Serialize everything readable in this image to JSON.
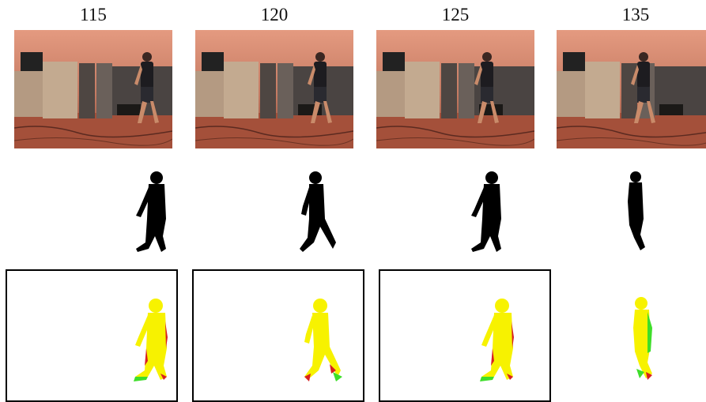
{
  "figure": {
    "frames": [
      {
        "label": "115",
        "overlay_bordered": true
      },
      {
        "label": "120",
        "overlay_bordered": true
      },
      {
        "label": "125",
        "overlay_bordered": true
      },
      {
        "label": "135",
        "overlay_bordered": false
      }
    ]
  },
  "colors": {
    "scene_warm": "#d9896a",
    "scene_floor": "#a8523c",
    "cabinet": "#b9a086",
    "silhouette": "#000000",
    "overlay_fill": "#f7f200",
    "overlay_false_negative": "#d82020",
    "overlay_false_positive": "#3ede2a"
  }
}
